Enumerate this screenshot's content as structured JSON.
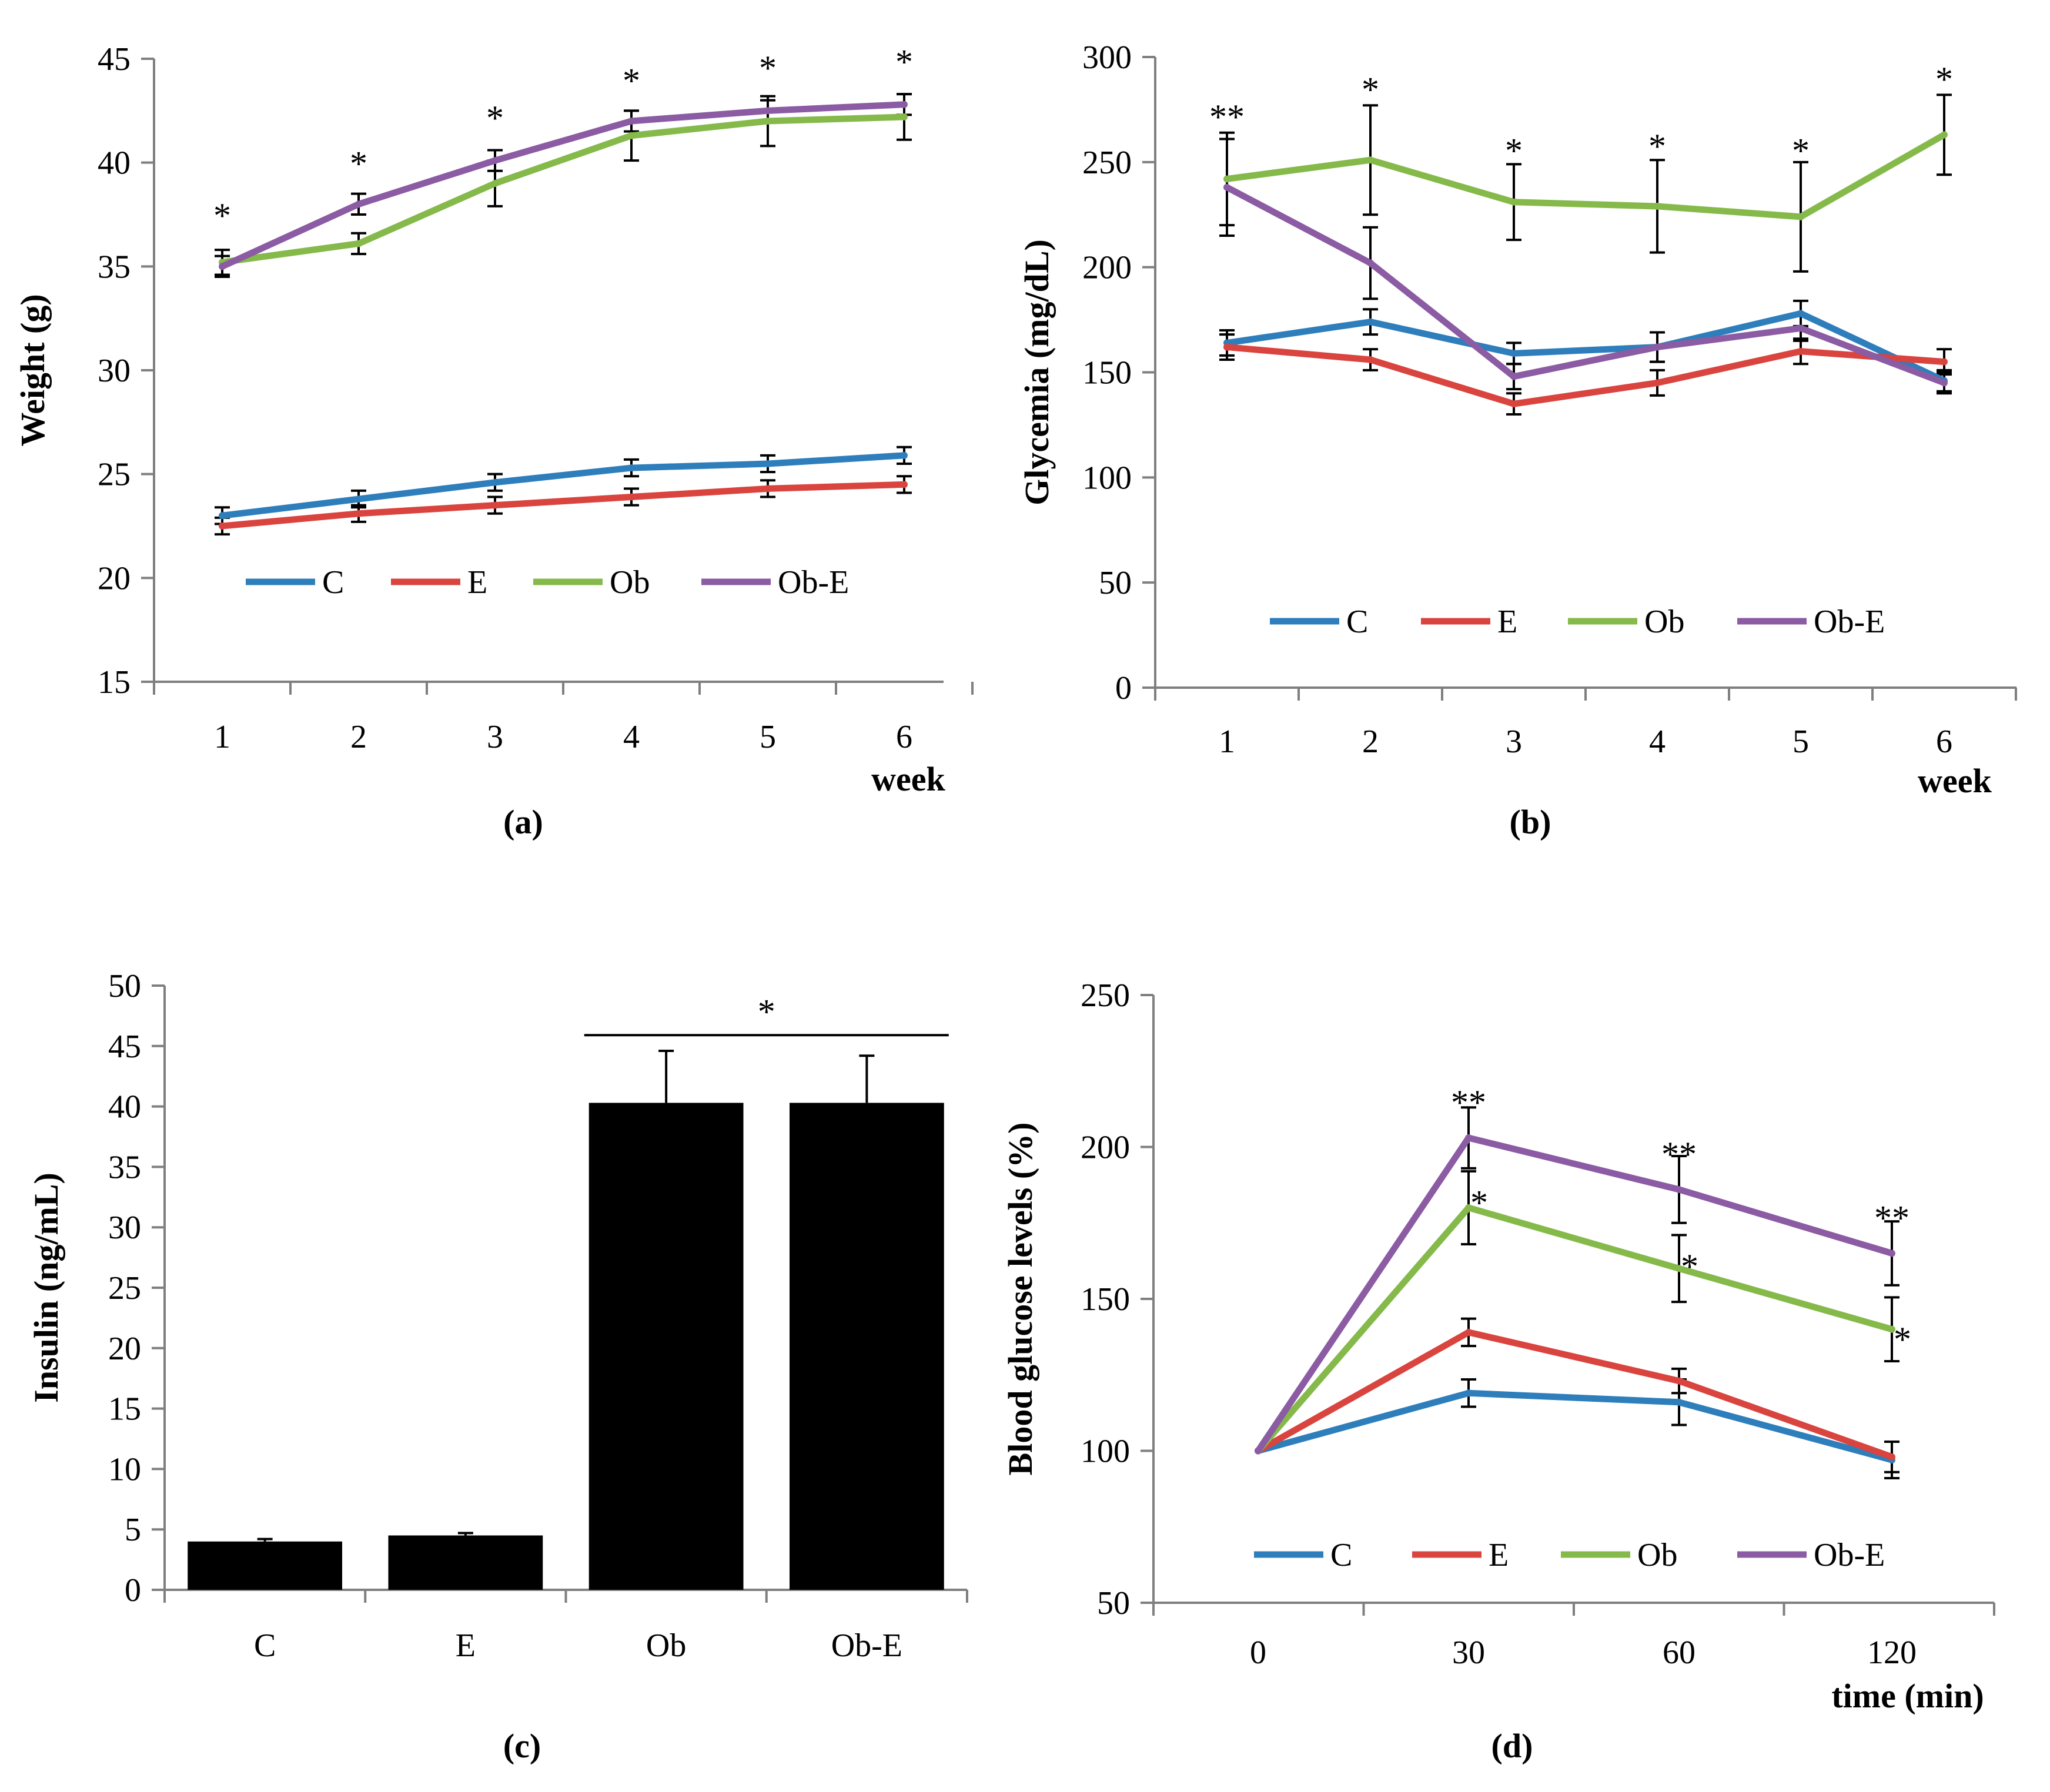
{
  "colors": {
    "C": "#2e7ebc",
    "E": "#d9443f",
    "Ob": "#85b94a",
    "Ob-E": "#8b5ba3",
    "bar": "#000000",
    "axis": "#7f7f7f"
  },
  "chart_data": [
    {
      "id": "a",
      "type": "line",
      "panel_label": "(a)",
      "ylabel": "Weight (g)",
      "xlabel": "week",
      "ylim": [
        15,
        45
      ],
      "yticks": [
        15,
        20,
        25,
        30,
        35,
        40,
        45
      ],
      "categories": [
        "1",
        "2",
        "3",
        "4",
        "5",
        "6"
      ],
      "series": [
        {
          "name": "C",
          "values": [
            23.0,
            23.8,
            24.6,
            25.3,
            25.5,
            25.9
          ],
          "errors": [
            0.4,
            0.4,
            0.4,
            0.4,
            0.4,
            0.4
          ]
        },
        {
          "name": "E",
          "values": [
            22.5,
            23.1,
            23.5,
            23.9,
            24.3,
            24.5
          ],
          "errors": [
            0.4,
            0.4,
            0.4,
            0.4,
            0.4,
            0.4
          ]
        },
        {
          "name": "Ob",
          "values": [
            35.2,
            36.1,
            39.0,
            41.3,
            42.0,
            42.2
          ],
          "errors": [
            0.6,
            0.5,
            1.1,
            1.2,
            1.2,
            1.1
          ]
        },
        {
          "name": "Ob-E",
          "values": [
            35.0,
            38.0,
            40.1,
            42.0,
            42.5,
            42.8
          ],
          "errors": [
            0.5,
            0.5,
            0.5,
            0.5,
            0.5,
            0.5
          ]
        }
      ],
      "legend": [
        "C",
        "E",
        "Ob",
        "Ob-E"
      ],
      "annotations": [
        {
          "category": "1",
          "text": "*",
          "value": 37.5
        },
        {
          "category": "2",
          "text": "*",
          "value": 40.0
        },
        {
          "category": "3",
          "text": "*",
          "value": 42.2
        },
        {
          "category": "4",
          "text": "*",
          "value": 44.0
        },
        {
          "category": "5",
          "text": "*",
          "value": 44.6
        },
        {
          "category": "6",
          "text": "*",
          "value": 44.9
        }
      ]
    },
    {
      "id": "b",
      "type": "line",
      "panel_label": "(b)",
      "ylabel": "Glycemia (mg/dL)",
      "xlabel": "week",
      "ylim": [
        0,
        300
      ],
      "yticks": [
        0,
        50,
        100,
        150,
        200,
        250,
        300
      ],
      "categories": [
        "1",
        "2",
        "3",
        "4",
        "5",
        "6"
      ],
      "series": [
        {
          "name": "C",
          "values": [
            164,
            174,
            159,
            162,
            178,
            146
          ],
          "errors": [
            6,
            6,
            5,
            7,
            6,
            5
          ]
        },
        {
          "name": "E",
          "values": [
            162,
            156,
            135,
            145,
            160,
            155
          ],
          "errors": [
            6,
            5,
            5,
            6,
            6,
            6
          ]
        },
        {
          "name": "Ob",
          "values": [
            242,
            251,
            231,
            229,
            224,
            263
          ],
          "errors": [
            22,
            26,
            18,
            22,
            26,
            19
          ]
        },
        {
          "name": "Ob-E",
          "values": [
            238,
            202,
            148,
            162,
            171,
            145
          ],
          "errors": [
            23,
            17,
            6,
            7,
            6,
            5
          ]
        }
      ],
      "legend": [
        "C",
        "E",
        "Ob",
        "Ob-E"
      ],
      "annotations": [
        {
          "category": "1",
          "text": "**",
          "value": 272
        },
        {
          "category": "2",
          "text": "*",
          "value": 285
        },
        {
          "category": "3",
          "text": "*",
          "value": 256
        },
        {
          "category": "4",
          "text": "*",
          "value": 258
        },
        {
          "category": "5",
          "text": "*",
          "value": 256
        },
        {
          "category": "6",
          "text": "*",
          "value": 290
        }
      ]
    },
    {
      "id": "c",
      "type": "bar",
      "panel_label": "(c)",
      "ylabel": "Insulin (ng/mL)",
      "xlabel": "",
      "ylim": [
        0,
        50
      ],
      "yticks": [
        0,
        5,
        10,
        15,
        20,
        25,
        30,
        35,
        40,
        45,
        50
      ],
      "categories": [
        "C",
        "E",
        "Ob",
        "Ob-E"
      ],
      "values": [
        4.0,
        4.5,
        40.3,
        40.3
      ],
      "errors": [
        0.2,
        0.2,
        4.3,
        3.9
      ],
      "bracket": {
        "from": "Ob",
        "to": "Ob-E",
        "value": 45.9,
        "text": "*"
      }
    },
    {
      "id": "d",
      "type": "line",
      "panel_label": "(d)",
      "ylabel": "Blood glucose levels (%)",
      "xlabel": "time (min)",
      "ylim": [
        50,
        250
      ],
      "yticks": [
        50,
        100,
        150,
        200,
        250
      ],
      "categories": [
        "0",
        "30",
        "60",
        "120"
      ],
      "series": [
        {
          "name": "C",
          "values": [
            100,
            119,
            116,
            97
          ],
          "errors": [
            0,
            4.5,
            7.5,
            6
          ]
        },
        {
          "name": "E",
          "values": [
            100,
            139,
            123,
            98
          ],
          "errors": [
            0,
            4.5,
            4,
            5
          ]
        },
        {
          "name": "Ob",
          "values": [
            100,
            180,
            160,
            140
          ],
          "errors": [
            0,
            12,
            11,
            10.5
          ]
        },
        {
          "name": "Ob-E",
          "values": [
            100,
            203,
            186,
            165
          ],
          "errors": [
            0,
            10,
            11,
            10.5
          ]
        }
      ],
      "legend": [
        "C",
        "E",
        "Ob",
        "Ob-E"
      ],
      "annotations": [
        {
          "category": "30",
          "text": "**",
          "value": 215
        },
        {
          "category": "60",
          "text": "**",
          "value": 198
        },
        {
          "category": "120",
          "text": "**",
          "value": 177
        },
        {
          "category": "30",
          "text": "*",
          "value": 182,
          "dx": 18
        },
        {
          "category": "60",
          "text": "*",
          "value": 161,
          "dx": 18
        },
        {
          "category": "120",
          "text": "*",
          "value": 137,
          "dx": 18
        }
      ]
    }
  ]
}
